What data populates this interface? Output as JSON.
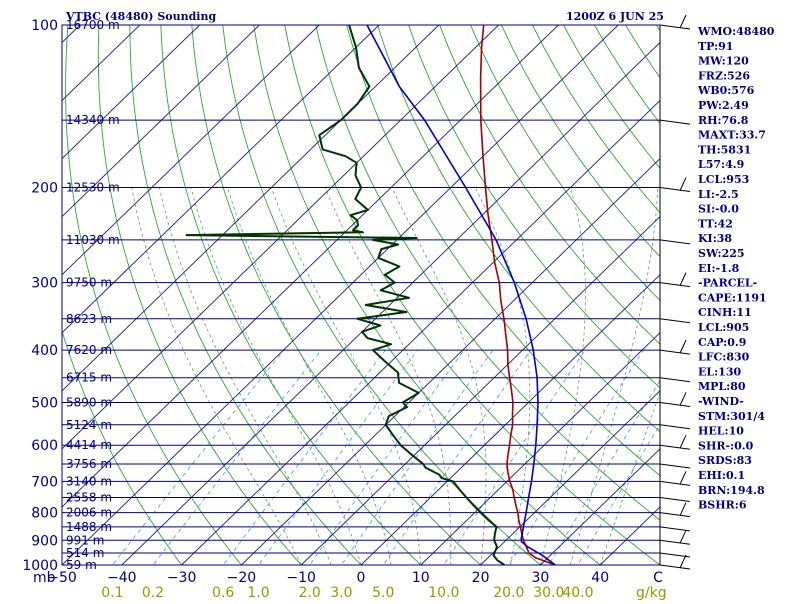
{
  "header": {
    "station": "VTBC (48480) Sounding",
    "time": "1200Z  6 JUN 25"
  },
  "colors": {
    "isobar": "#000080",
    "isotherm": "#1a1a8c",
    "dry_adiabat": "#2fa82f",
    "moist_adiabat": "#5f9d6f",
    "mixing_ratio": "#3aa0d0",
    "temperature": "#a00000",
    "dewpoint": "#003300",
    "parcel": "#0000c0",
    "text": "#000080",
    "mr_label": "#999900"
  },
  "chart_data": {
    "type": "line",
    "title": "VTBC (48480) Sounding",
    "subtitle": "1200Z  6 JUN 25",
    "xlabel": "C",
    "ylabel": "mb",
    "x_range": [
      -50,
      50
    ],
    "y_range": [
      1000,
      100
    ],
    "y_scale": "log",
    "skew": true,
    "pressure_levels": [
      100,
      200,
      300,
      400,
      500,
      600,
      700,
      800,
      900,
      1000
    ],
    "pressure_labels": [
      "100",
      "200",
      "300",
      "400",
      "500",
      "600",
      "700",
      "800",
      "900",
      "1000"
    ],
    "temperature_ticks": [
      -50,
      -40,
      -30,
      -20,
      -10,
      0,
      10,
      20,
      30,
      40,
      50
    ],
    "temperature_labels": [
      "−50",
      "−40",
      "−30",
      "−20",
      "−10",
      "0",
      "10",
      "20",
      "30",
      "40",
      "50"
    ],
    "xaxis_prefix": "mb",
    "xaxis_suffix": "C",
    "mixing_ratio_labels": [
      "0.1",
      "0.2",
      "0.6",
      "1.0",
      "2.0",
      "3.0",
      "5.0",
      "10.0",
      "20.0",
      "30.0",
      "40.0"
    ],
    "mixing_ratio_unit": "g/kg",
    "heights": [
      {
        "p": 100,
        "label": "16700 m"
      },
      {
        "p": 150,
        "label": "14340 m"
      },
      {
        "p": 200,
        "label": "12530 m"
      },
      {
        "p": 250,
        "label": "11030 m"
      },
      {
        "p": 300,
        "label": "9750 m"
      },
      {
        "p": 350,
        "label": "8623 m"
      },
      {
        "p": 400,
        "label": "7620 m"
      },
      {
        "p": 450,
        "label": "6715 m"
      },
      {
        "p": 500,
        "label": "5890 m"
      },
      {
        "p": 550,
        "label": "5124 m"
      },
      {
        "p": 600,
        "label": "4414 m"
      },
      {
        "p": 650,
        "label": "3756 m"
      },
      {
        "p": 700,
        "label": "3140 m"
      },
      {
        "p": 750,
        "label": "2558 m"
      },
      {
        "p": 800,
        "label": "2006 m"
      },
      {
        "p": 850,
        "label": "1488 m"
      },
      {
        "p": 900,
        "label": "991 m"
      },
      {
        "p": 950,
        "label": "514 m"
      },
      {
        "p": 1000,
        "label": "59 m"
      }
    ],
    "series": [
      {
        "name": "Temperature",
        "points": [
          [
            1000,
            32.5
          ],
          [
            990,
            31
          ],
          [
            980,
            29.5
          ],
          [
            970,
            28
          ],
          [
            960,
            27
          ],
          [
            950,
            26
          ],
          [
            925,
            24.5
          ],
          [
            900,
            22.9
          ],
          [
            875,
            21.5
          ],
          [
            850,
            20.1
          ],
          [
            825,
            18.6
          ],
          [
            800,
            17.2
          ],
          [
            775,
            15.6
          ],
          [
            750,
            14
          ],
          [
            725,
            12.4
          ],
          [
            700,
            10.5
          ],
          [
            675,
            8.7
          ],
          [
            650,
            7
          ],
          [
            625,
            5.6
          ],
          [
            600,
            4.2
          ],
          [
            575,
            2.7
          ],
          [
            550,
            1.2
          ],
          [
            525,
            -0.7
          ],
          [
            500,
            -2.6
          ],
          [
            475,
            -4.9
          ],
          [
            450,
            -7.4
          ],
          [
            425,
            -10
          ],
          [
            400,
            -12.5
          ],
          [
            375,
            -15.4
          ],
          [
            350,
            -18.5
          ],
          [
            325,
            -22
          ],
          [
            300,
            -25.5
          ],
          [
            275,
            -29.8
          ],
          [
            250,
            -34.1
          ],
          [
            225,
            -39
          ],
          [
            200,
            -44.2
          ],
          [
            175,
            -50
          ],
          [
            150,
            -56.6
          ],
          [
            125,
            -64
          ],
          [
            110,
            -69
          ],
          [
            100,
            -72.5
          ]
        ]
      },
      {
        "name": "Dewpoint",
        "points": [
          [
            1000,
            24
          ],
          [
            980,
            22
          ],
          [
            960,
            20.5
          ],
          [
            940,
            20
          ],
          [
            925,
            19.6
          ],
          [
            900,
            18
          ],
          [
            875,
            17
          ],
          [
            850,
            16.1
          ],
          [
            825,
            13.5
          ],
          [
            800,
            11
          ],
          [
            775,
            8.5
          ],
          [
            750,
            6
          ],
          [
            725,
            3.5
          ],
          [
            700,
            1
          ],
          [
            690,
            -1.5
          ],
          [
            680,
            -2.5
          ],
          [
            660,
            -6
          ],
          [
            650,
            -7
          ],
          [
            625,
            -10.5
          ],
          [
            600,
            -14
          ],
          [
            575,
            -17
          ],
          [
            550,
            -20
          ],
          [
            530,
            -21
          ],
          [
            510,
            -19.5
          ],
          [
            500,
            -21
          ],
          [
            480,
            -20
          ],
          [
            460,
            -25
          ],
          [
            440,
            -27
          ],
          [
            420,
            -31
          ],
          [
            400,
            -35
          ],
          [
            390,
            -33
          ],
          [
            380,
            -38
          ],
          [
            370,
            -40
          ],
          [
            360,
            -38
          ],
          [
            350,
            -43
          ],
          [
            340,
            -36
          ],
          [
            330,
            -44
          ],
          [
            320,
            -38
          ],
          [
            310,
            -44
          ],
          [
            300,
            -43
          ],
          [
            290,
            -46
          ],
          [
            280,
            -45
          ],
          [
            270,
            -50
          ],
          [
            260,
            -51
          ],
          [
            255,
            -49
          ],
          [
            250,
            -54
          ],
          [
            248,
            -47
          ],
          [
            245,
            -86
          ],
          [
            242,
            -57
          ],
          [
            240,
            -59
          ],
          [
            235,
            -59
          ],
          [
            230,
            -60
          ],
          [
            225,
            -62
          ],
          [
            220,
            -60
          ],
          [
            210,
            -64
          ],
          [
            200,
            -65
          ],
          [
            190,
            -68
          ],
          [
            180,
            -70
          ],
          [
            175,
            -73
          ],
          [
            170,
            -78
          ],
          [
            160,
            -81
          ],
          [
            150,
            -80
          ],
          [
            140,
            -80
          ],
          [
            130,
            -81
          ],
          [
            120,
            -86
          ],
          [
            110,
            -90
          ],
          [
            100,
            -95
          ]
        ]
      },
      {
        "name": "Parcel",
        "points": [
          [
            1000,
            32.5
          ],
          [
            980,
            30.6
          ],
          [
            960,
            28.7
          ],
          [
            953,
            27.9
          ],
          [
            925,
            24.7
          ],
          [
            905,
            22.8
          ],
          [
            900,
            22.5
          ],
          [
            850,
            20.6
          ],
          [
            800,
            18.6
          ],
          [
            750,
            16.4
          ],
          [
            700,
            14.1
          ],
          [
            650,
            11.5
          ],
          [
            600,
            8.6
          ],
          [
            550,
            5.3
          ],
          [
            500,
            1.6
          ],
          [
            450,
            -2.8
          ],
          [
            400,
            -8.2
          ],
          [
            350,
            -14.8
          ],
          [
            300,
            -23
          ],
          [
            250,
            -33.4
          ],
          [
            200,
            -47.5
          ],
          [
            150,
            -66
          ],
          [
            130,
            -76
          ],
          [
            100,
            -92
          ]
        ]
      }
    ]
  },
  "winds_ticks": [
    1000,
    950,
    900,
    850,
    800,
    750,
    700,
    650,
    600,
    550,
    500,
    450,
    400,
    350,
    300,
    250,
    200,
    150,
    100
  ],
  "indices": [
    "WMO:48480",
    "TP:91",
    "MW:120",
    "FRZ:526",
    "WB0:576",
    "PW:2.49",
    "RH:76.8",
    "MAXT:33.7",
    "TH:5831",
    "L57:4.9",
    "LCL:953",
    "LI:-2.5",
    "SI:-0.0",
    "TT:42",
    "KI:38",
    "SW:225",
    "EI:-1.8",
    "-PARCEL-",
    "CAPE:1191",
    "CINH:11",
    "LCL:905",
    "CAP:0.9",
    "LFC:830",
    "EL:130",
    "MPL:80",
    "-WIND-",
    "STM:301/4",
    "HEL:10",
    "SHR-:0.0",
    "SRDS:83",
    "EHI:0.1",
    "BRN:194.8",
    "BSHR:6"
  ]
}
